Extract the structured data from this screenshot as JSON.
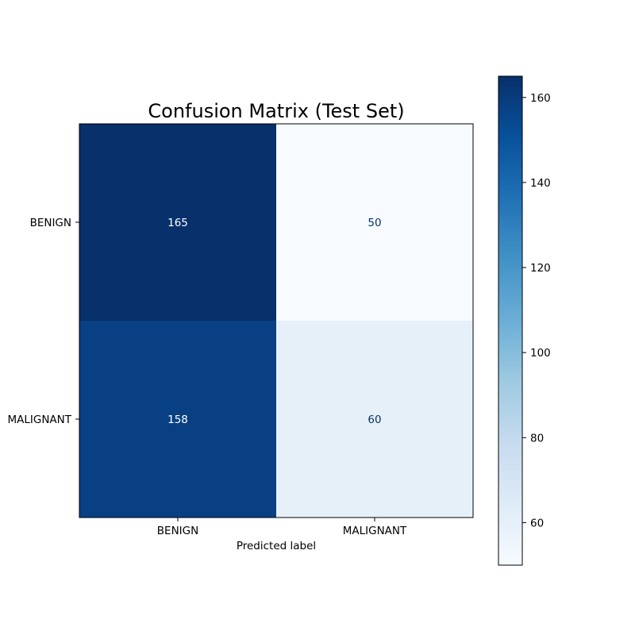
{
  "chart_data": {
    "type": "heatmap",
    "title": "Confusion Matrix (Test Set)",
    "xlabel": "Predicted label",
    "ylabel": "",
    "x_categories": [
      "BENIGN",
      "MALIGNANT"
    ],
    "y_categories": [
      "BENIGN",
      "MALIGNANT"
    ],
    "matrix": [
      [
        165,
        50
      ],
      [
        158,
        60
      ]
    ],
    "colormap": "Blues",
    "color_min": 50,
    "color_max": 165,
    "colorbar_ticks": [
      60,
      80,
      100,
      120,
      140,
      160
    ]
  }
}
